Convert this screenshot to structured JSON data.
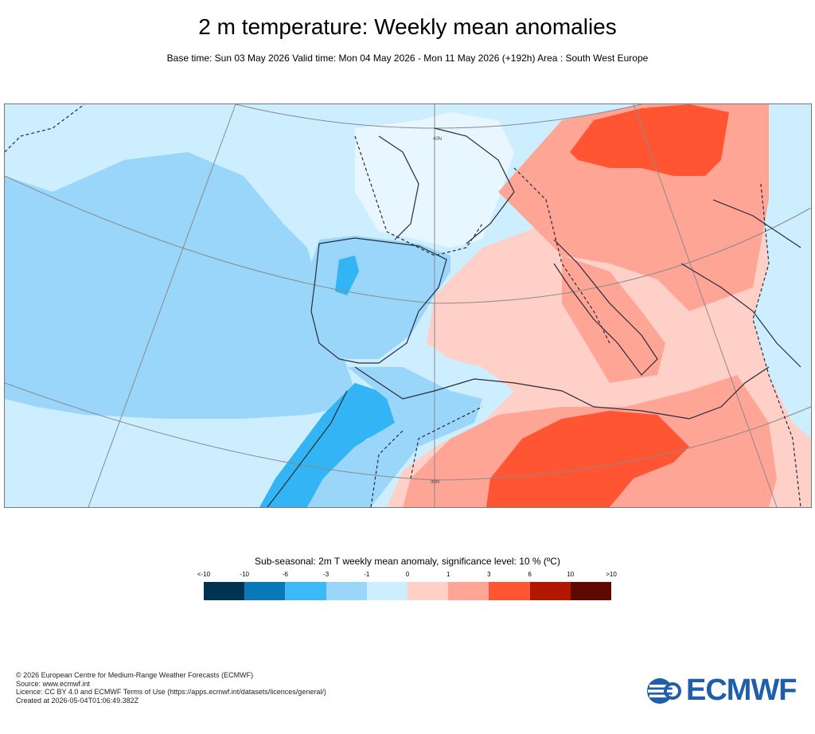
{
  "header": {
    "title": "2 m temperature: Weekly mean anomalies",
    "subtitle": "Base time: Sun 03 May 2026 Valid time: Mon 04 May 2026 - Mon 11 May 2026 (+192h) Area : South West Europe"
  },
  "map": {
    "lat_labels": [
      "40N",
      "30N"
    ],
    "colors": {
      "sea_light": "#cceeff",
      "minus1_minus3": "#99d6fa",
      "minus3_minus6": "#33b5f5",
      "zero_plus1": "#ffd0c8",
      "plus1_plus3": "#ffa596",
      "plus3_plus6": "#ff5533",
      "coast": "#2a2a3a",
      "graticule": "#8a8a8a"
    }
  },
  "legend": {
    "title": "Sub-seasonal: 2m T weekly mean anomaly, significance level: 10 % (ºC)",
    "ticks": [
      "<-10",
      "-10",
      "-6",
      "-3",
      "-1",
      "0",
      "1",
      "3",
      "6",
      "10",
      ">10"
    ],
    "colors": [
      "#003350",
      "#0a78b8",
      "#3bbaf7",
      "#99d6fa",
      "#cceeff",
      "#ffd0c8",
      "#ffa596",
      "#ff5533",
      "#b21800",
      "#5e0a00"
    ]
  },
  "footer": {
    "line1": "© 2026 European Centre for Medium-Range Weather Forecasts (ECMWF)",
    "line2": "Source: www.ecmwf.int",
    "line3": "Licence: CC BY 4.0 and ECMWF Terms of Use (https://apps.ecmwf.int/datasets/licences/general/)",
    "line4": "Created at 2026-05-04T01:06:49.382Z"
  },
  "logo": {
    "text": "ECMWF"
  }
}
